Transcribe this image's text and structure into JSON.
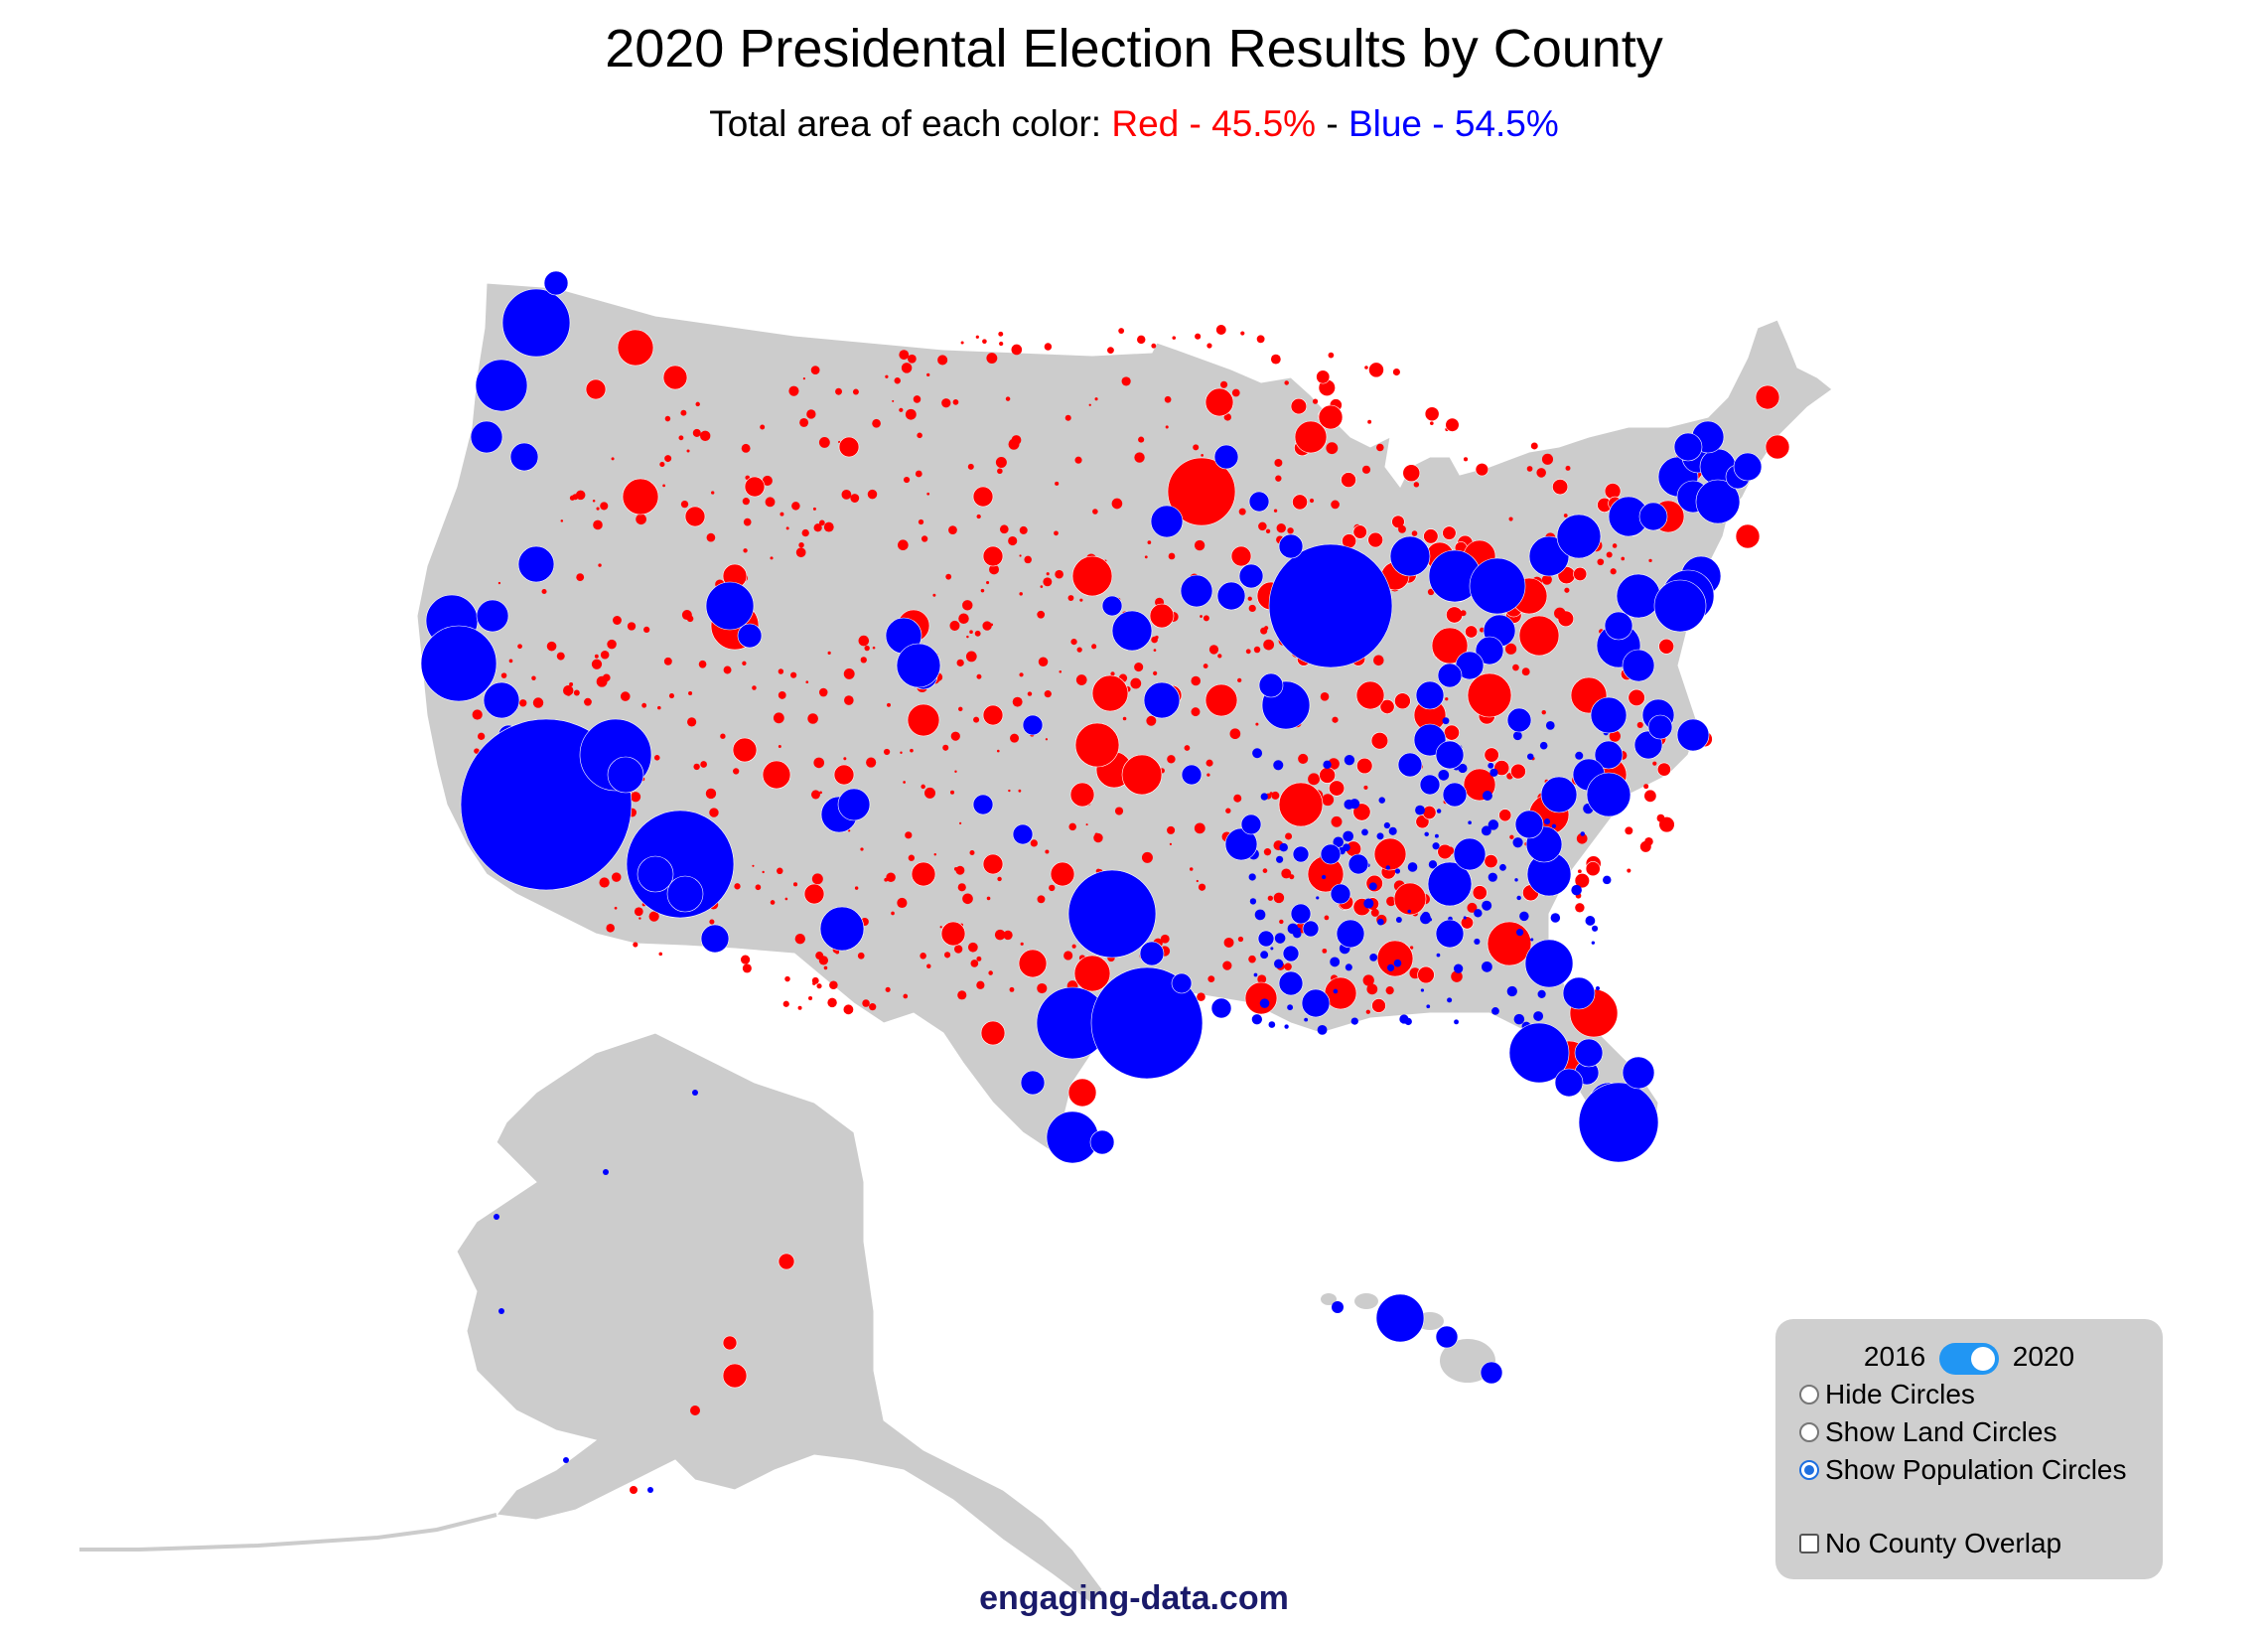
{
  "title": "2020 Presidental Election Results by County",
  "subtitle": {
    "prefix": "Total area of each color: ",
    "red_text": "Red - 45.5%",
    "separator": " - ",
    "blue_text": "Blue - 54.5%",
    "red_color": "#ff0000",
    "blue_color": "#0000ff"
  },
  "map": {
    "land_color": "#cccccc",
    "red_color": "#ff0000",
    "blue_color": "#0000ff"
  },
  "controls": {
    "year_left": "2016",
    "year_right": "2020",
    "toggle_selected": "2020",
    "options": [
      {
        "label": "Hide Circles",
        "selected": false
      },
      {
        "label": "Show Land Circles",
        "selected": false
      },
      {
        "label": "Show Population Circles",
        "selected": true
      }
    ],
    "checkbox": {
      "label": "No County Overlap",
      "checked": false
    }
  },
  "footer": "engaging-data.com"
}
